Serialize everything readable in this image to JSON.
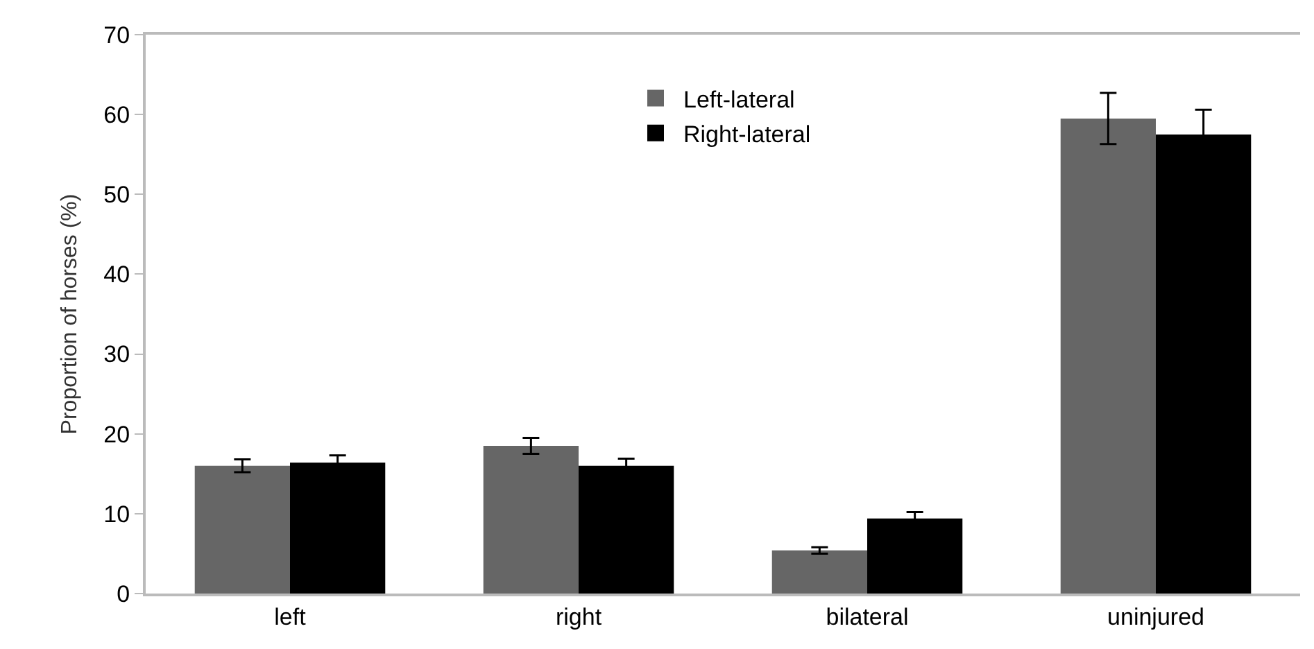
{
  "chart_data": {
    "type": "bar",
    "ylabel": "Proportion of horses (%)",
    "categories": [
      "left",
      "right",
      "bilateral",
      "uninjured"
    ],
    "series": [
      {
        "name": "Left-lateral",
        "color": "#666666",
        "values": [
          16.0,
          18.5,
          5.4,
          59.5
        ],
        "errors": [
          0.8,
          1.0,
          0.4,
          3.2
        ]
      },
      {
        "name": "Right-lateral",
        "color": "#000000",
        "values": [
          16.4,
          16.0,
          9.4,
          57.5
        ],
        "errors": [
          0.9,
          0.9,
          0.8,
          3.1
        ]
      }
    ],
    "ylim": [
      0,
      70
    ],
    "yticks": [
      0,
      10,
      20,
      30,
      40,
      50,
      60,
      70
    ],
    "grid": false,
    "legend": "top"
  }
}
